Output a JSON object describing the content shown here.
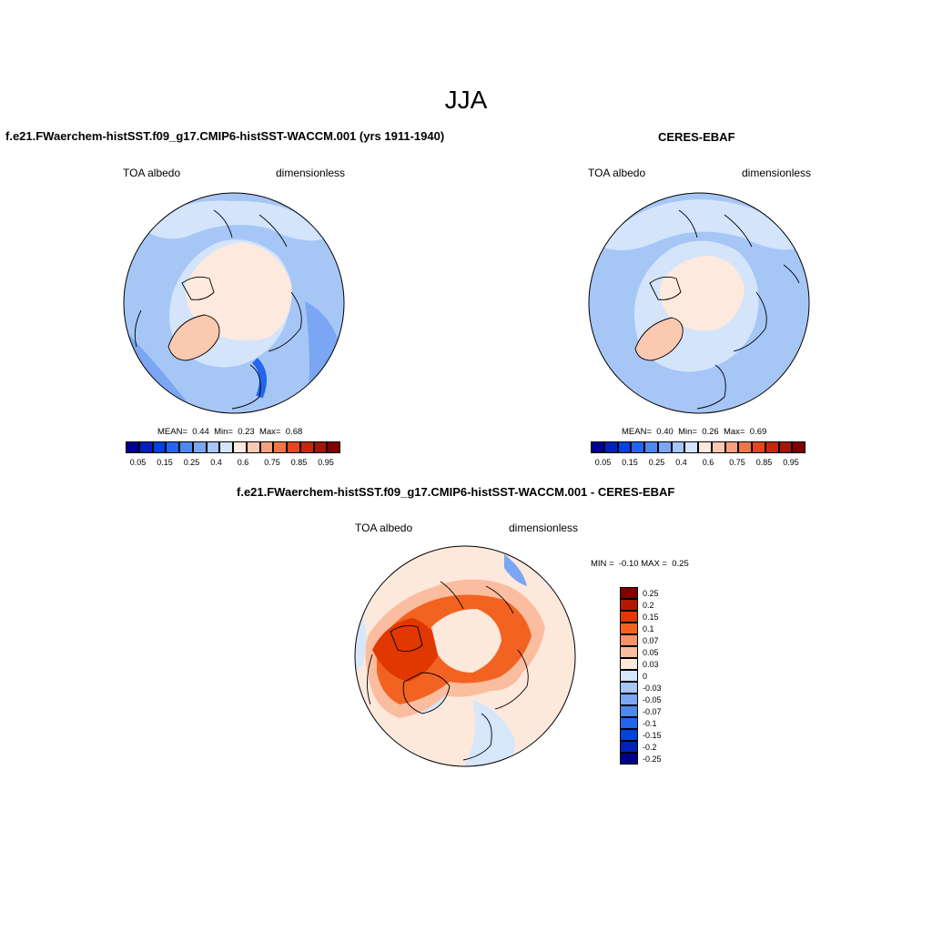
{
  "main_title": "JJA",
  "panels": {
    "model": {
      "title": "f.e21.FWaerchem-histSST.f09_g17.CMIP6-histSST-WACCM.001 (yrs 1911-1940)",
      "left_label": "TOA albedo",
      "right_label": "dimensionless",
      "stats": {
        "mean_label": "MEAN=",
        "mean": "0.44",
        "min_label": "Min=",
        "min": "0.23",
        "max_label": "Max=",
        "max": "0.68"
      }
    },
    "obs": {
      "title": "CERES-EBAF",
      "left_label": "TOA albedo",
      "right_label": "dimensionless",
      "stats": {
        "mean_label": "MEAN=",
        "mean": "0.40",
        "min_label": "Min=",
        "min": "0.26",
        "max_label": "Max=",
        "max": "0.69"
      }
    },
    "diff": {
      "title": "f.e21.FWaerchem-histSST.f09_g17.CMIP6-histSST-WACCM.001 - CERES-EBAF",
      "left_label": "TOA albedo",
      "right_label": "dimensionless",
      "stats": {
        "min_label": "MIN =",
        "min": "-0.10",
        "max_label": "MAX =",
        "max": "0.25"
      }
    }
  },
  "colorbar_abs": {
    "colors": [
      "#00008b",
      "#0022b8",
      "#0044dd",
      "#2266ee",
      "#4d88f0",
      "#7aa6f3",
      "#a6c6f6",
      "#d3e4fb",
      "#fde9de",
      "#fbc9b0",
      "#f7a07e",
      "#f07648",
      "#e2471e",
      "#c22a0a",
      "#a1160a",
      "#7f0000"
    ],
    "labels": [
      "0.05",
      "0.15",
      "0.25",
      "0.4",
      "0.6",
      "0.75",
      "0.85",
      "0.95"
    ]
  },
  "colorbar_diff": {
    "colors": [
      "#7f0000",
      "#b21a00",
      "#e03800",
      "#f26322",
      "#f69468",
      "#fbbd9f",
      "#fde8dc",
      "#d6e6fb",
      "#a6c6f6",
      "#7aa6f3",
      "#4d88f0",
      "#2266ee",
      "#0044dd",
      "#0022b8",
      "#00008b"
    ],
    "labels": [
      "0.25",
      "0.2",
      "0.15",
      "0.1",
      "0.07",
      "0.05",
      "0.03",
      "0",
      "-0.03",
      "-0.05",
      "-0.07",
      "-0.1",
      "-0.15",
      "-0.2",
      "-0.25"
    ]
  },
  "palette": {
    "ocean_light": "#d3e4fb",
    "ocean_mid": "#a6c6f6",
    "ocean_dark": "#7aa6f3",
    "warm_light": "#fde9de",
    "warm_mid": "#fbc9b0",
    "diff_high": "#e03800",
    "diff_mid": "#f26322",
    "diff_low": "#fbbd9f"
  }
}
